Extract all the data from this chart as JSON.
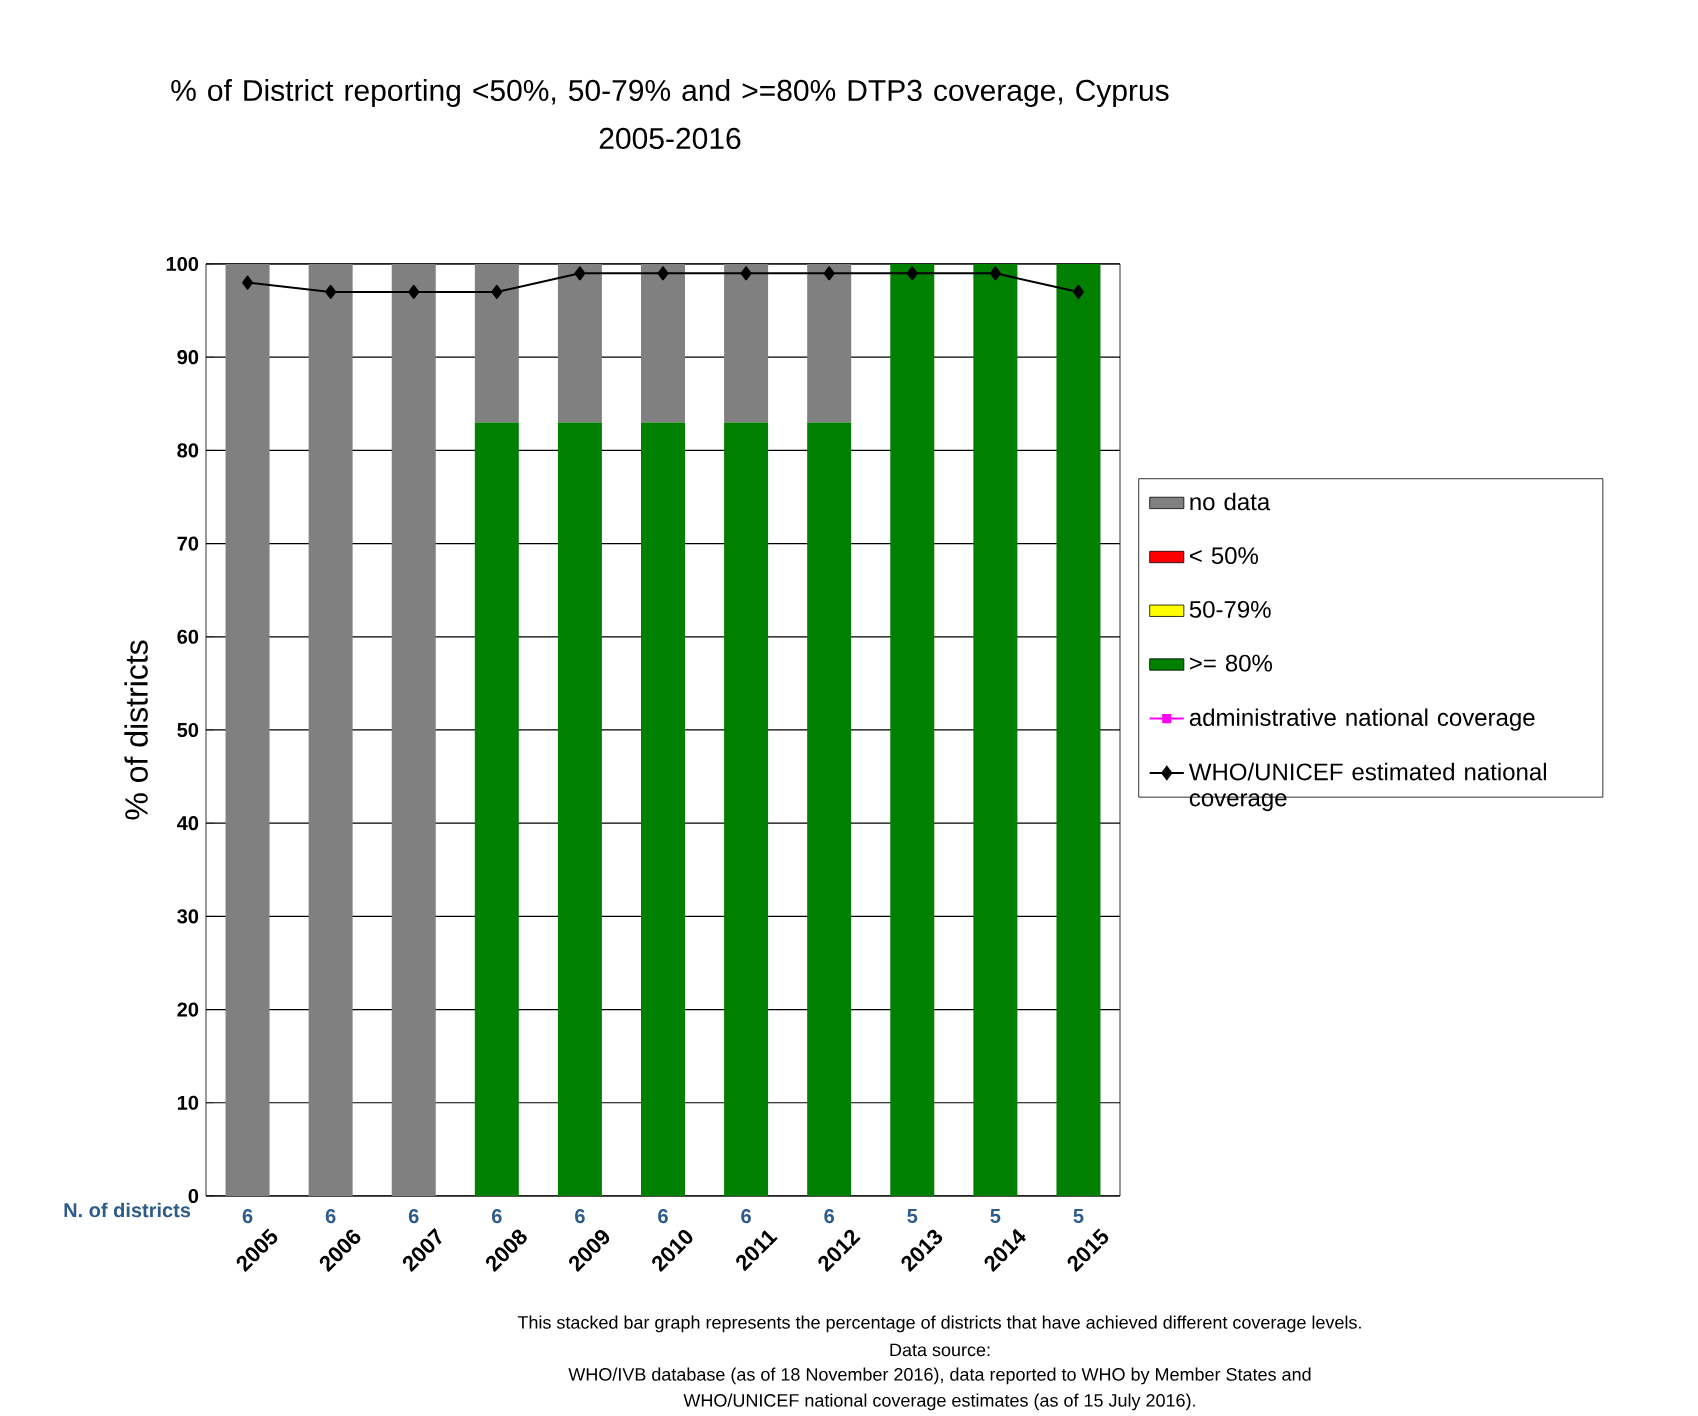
{
  "chart_data": {
    "type": "bar",
    "title": "% of District reporting <50%, 50-79% and >=80% DTP3 coverage, Cyprus",
    "subtitle": "2005-2016",
    "ylabel": "% of districts",
    "categories": [
      "2005",
      "2006",
      "2007",
      "2008",
      "2009",
      "2010",
      "2011",
      "2012",
      "2013",
      "2014",
      "2015"
    ],
    "stacked": true,
    "series": [
      {
        "name": ">= 80%",
        "color": "#007f00",
        "values": [
          0,
          0,
          0,
          83,
          83,
          83,
          83,
          83,
          100,
          100,
          100
        ]
      },
      {
        "name": "50-79%",
        "color": "#ffff00",
        "values": [
          0,
          0,
          0,
          0,
          0,
          0,
          0,
          0,
          0,
          0,
          0
        ]
      },
      {
        "name": "< 50%",
        "color": "#ff0000",
        "values": [
          0,
          0,
          0,
          0,
          0,
          0,
          0,
          0,
          0,
          0,
          0
        ]
      },
      {
        "name": "no data",
        "color": "#808080",
        "values": [
          100,
          100,
          100,
          17,
          17,
          17,
          17,
          17,
          0,
          0,
          0
        ]
      },
      {
        "name": "administrative national coverage",
        "type": "line",
        "marker": "square",
        "color": "#ff00ff",
        "values": [
          null,
          null,
          null,
          null,
          null,
          null,
          null,
          null,
          null,
          null,
          null
        ]
      },
      {
        "name": "WHO/UNICEF estimated national coverage",
        "type": "line",
        "marker": "diamond",
        "color": "#000000",
        "values": [
          98,
          97,
          97,
          97,
          99,
          99,
          99,
          99,
          99,
          99,
          97
        ]
      }
    ],
    "ylim": [
      0,
      100
    ],
    "yticks": [
      0,
      10,
      20,
      30,
      40,
      50,
      60,
      70,
      80,
      90,
      100
    ],
    "grid": "y",
    "legend": "right",
    "annotations": [
      "N. of districts",
      "6",
      "6",
      "6",
      "6",
      "6",
      "6",
      "6",
      "6",
      "5",
      "5",
      "5",
      "This stacked bar graph represents the percentage of districts that have achieved different coverage levels.",
      "Data source:",
      "WHO/IVB database (as of 18 November 2016), data reported to WHO by Member States and",
      "WHO/UNICEF national coverage estimates (as of 15 July 2016)."
    ]
  }
}
